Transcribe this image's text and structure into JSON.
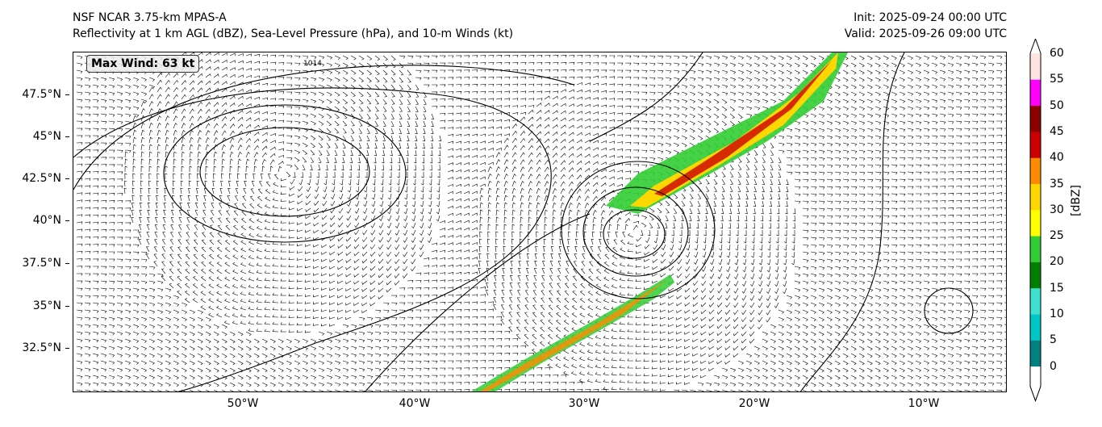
{
  "header": {
    "model": "NSF NCAR 3.75-km MPAS-A",
    "fields": "Reflectivity at 1 km AGL (dBZ), Sea-Level Pressure (hPa), and 10-m Winds (kt)",
    "init": "Init: 2025-09-24 00:00 UTC",
    "valid": "Valid: 2025-09-26 09:00 UTC"
  },
  "map": {
    "max_wind_label": "Max Wind: 63 kt",
    "contour_label": "1014",
    "lat_ticks": [
      "47.5°N",
      "45°N",
      "42.5°N",
      "40°N",
      "37.5°N",
      "35°N",
      "32.5°N"
    ],
    "lon_ticks": [
      "50°W",
      "40°W",
      "30°W",
      "20°W",
      "10°W"
    ]
  },
  "colorbar": {
    "unit": "[dBZ]",
    "ticks": [
      "0",
      "5",
      "10",
      "15",
      "20",
      "25",
      "30",
      "35",
      "40",
      "45",
      "50",
      "55",
      "60"
    ],
    "colors": [
      "#008080",
      "#00c8c8",
      "#40e0d0",
      "#008000",
      "#32cd32",
      "#ffff00",
      "#ffd700",
      "#ff8c00",
      "#cc0000",
      "#8b0000",
      "#ff00ff",
      "#ffe4e1"
    ]
  }
}
